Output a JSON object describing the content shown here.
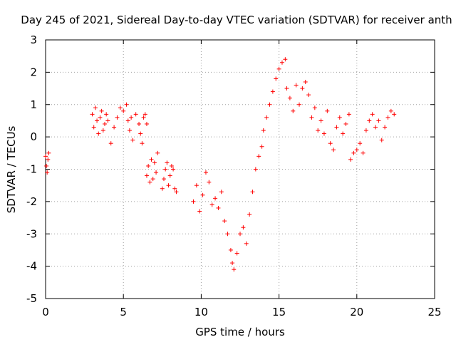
{
  "chart_data": {
    "type": "scatter",
    "title": "Day 245 of 2021, Sidereal Day-to-day VTEC variation (SDTVAR) for receiver anth",
    "xlabel": "GPS time / hours",
    "ylabel": "SDTVAR / TECUs",
    "xlim": [
      0,
      25
    ],
    "ylim": [
      -5,
      3
    ],
    "xticks": [
      "0",
      "5",
      "10",
      "15",
      "20",
      "25"
    ],
    "yticks": [
      "-5",
      "-4",
      "-3",
      "-2",
      "-1",
      "0",
      "1",
      "2",
      "3"
    ],
    "grid": true,
    "marker": "+",
    "color": "#ff0000",
    "series": [
      {
        "x": [
          0.0,
          0.05,
          0.1,
          0.15,
          0.2,
          3.0,
          3.1,
          3.2,
          3.3,
          3.4,
          3.5,
          3.6,
          3.7,
          3.8,
          3.9,
          4.0,
          4.2,
          4.4,
          4.6,
          4.8,
          5.0,
          5.2,
          5.3,
          5.4,
          5.5,
          5.6,
          5.8,
          6.0,
          6.1,
          6.2,
          6.3,
          6.4,
          6.5,
          6.5,
          6.6,
          6.7,
          6.8,
          6.9,
          7.0,
          7.1,
          7.2,
          7.5,
          7.6,
          7.7,
          7.8,
          7.9,
          8.0,
          8.1,
          8.2,
          8.3,
          8.4,
          9.5,
          9.7,
          9.9,
          10.1,
          10.3,
          10.5,
          10.7,
          10.9,
          11.1,
          11.3,
          11.5,
          11.7,
          11.9,
          12.0,
          12.1,
          12.3,
          12.5,
          12.7,
          12.9,
          13.1,
          13.3,
          13.5,
          13.7,
          13.9,
          14.0,
          14.2,
          14.4,
          14.6,
          14.8,
          15.0,
          15.2,
          15.4,
          15.5,
          15.7,
          15.9,
          16.1,
          16.3,
          16.5,
          16.7,
          16.9,
          17.1,
          17.3,
          17.5,
          17.7,
          17.9,
          18.1,
          18.3,
          18.5,
          18.7,
          18.9,
          19.1,
          19.3,
          19.5,
          19.6,
          19.8,
          20.0,
          20.2,
          20.4,
          20.6,
          20.8,
          21.0,
          21.2,
          21.4,
          21.6,
          21.8,
          22.0,
          22.2,
          22.4
        ],
        "y": [
          -0.6,
          -0.9,
          -1.1,
          -0.7,
          -0.5,
          0.7,
          0.3,
          0.9,
          0.5,
          0.1,
          0.6,
          0.8,
          0.2,
          0.4,
          0.7,
          0.5,
          -0.2,
          0.3,
          0.6,
          0.9,
          0.8,
          1.0,
          0.5,
          0.2,
          0.6,
          -0.1,
          0.7,
          0.4,
          0.1,
          -0.2,
          0.6,
          0.7,
          0.4,
          -1.2,
          -0.9,
          -1.4,
          -0.7,
          -1.3,
          -0.8,
          -1.1,
          -0.5,
          -1.6,
          -1.3,
          -1.0,
          -0.8,
          -1.5,
          -1.2,
          -0.9,
          -1.0,
          -1.6,
          -1.7,
          -2.0,
          -1.5,
          -2.3,
          -1.8,
          -1.1,
          -1.4,
          -2.1,
          -1.9,
          -2.2,
          -1.7,
          -2.6,
          -3.0,
          -3.5,
          -3.9,
          -4.1,
          -3.6,
          -3.0,
          -2.8,
          -3.3,
          -2.4,
          -1.7,
          -1.0,
          -0.6,
          -0.3,
          0.2,
          0.6,
          1.0,
          1.4,
          1.8,
          2.1,
          2.3,
          2.4,
          1.5,
          1.2,
          0.8,
          1.6,
          1.0,
          1.5,
          1.7,
          1.3,
          0.6,
          0.9,
          0.2,
          0.5,
          0.1,
          0.8,
          -0.2,
          -0.4,
          0.3,
          0.6,
          0.1,
          0.4,
          0.7,
          -0.7,
          -0.5,
          -0.4,
          -0.2,
          -0.5,
          0.2,
          0.5,
          0.7,
          0.3,
          0.5,
          -0.1,
          0.3,
          0.6,
          0.8,
          0.7
        ]
      }
    ]
  }
}
